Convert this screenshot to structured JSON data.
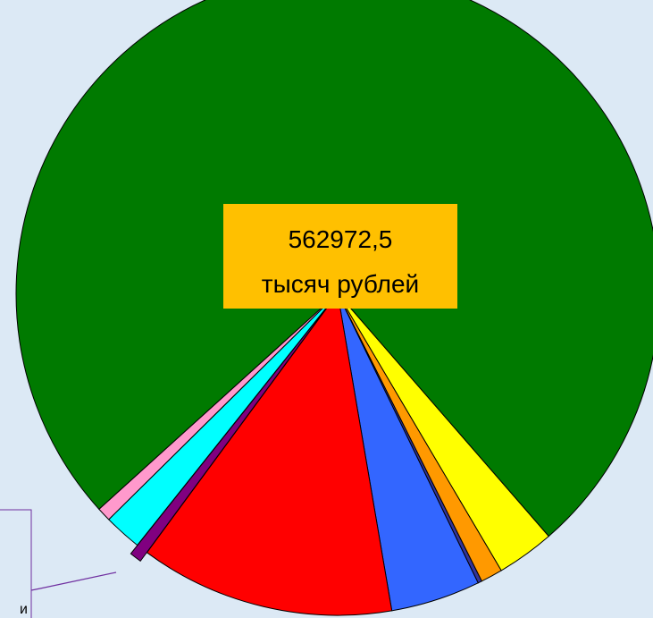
{
  "chart_data": {
    "type": "pie",
    "categories": [
      null,
      null,
      null,
      null,
      null,
      null,
      null,
      null,
      null
    ],
    "values": [
      562972.5,
      21680,
      8224,
      1495,
      33644,
      95698,
      4486,
      14205,
      5233
    ],
    "value_labels": [
      "562972,5 тысяч рублей",
      null,
      null,
      null,
      null,
      null,
      null,
      null,
      null
    ],
    "colors": [
      "#007a00",
      "#ffff00",
      "#ff9900",
      "#333399",
      "#3366ff",
      "#ff0000",
      "#800080",
      "#00ffff",
      "#ff99cc"
    ],
    "exploded": [
      false,
      false,
      false,
      false,
      false,
      false,
      true,
      false,
      false
    ],
    "annotation": "и"
  }
}
